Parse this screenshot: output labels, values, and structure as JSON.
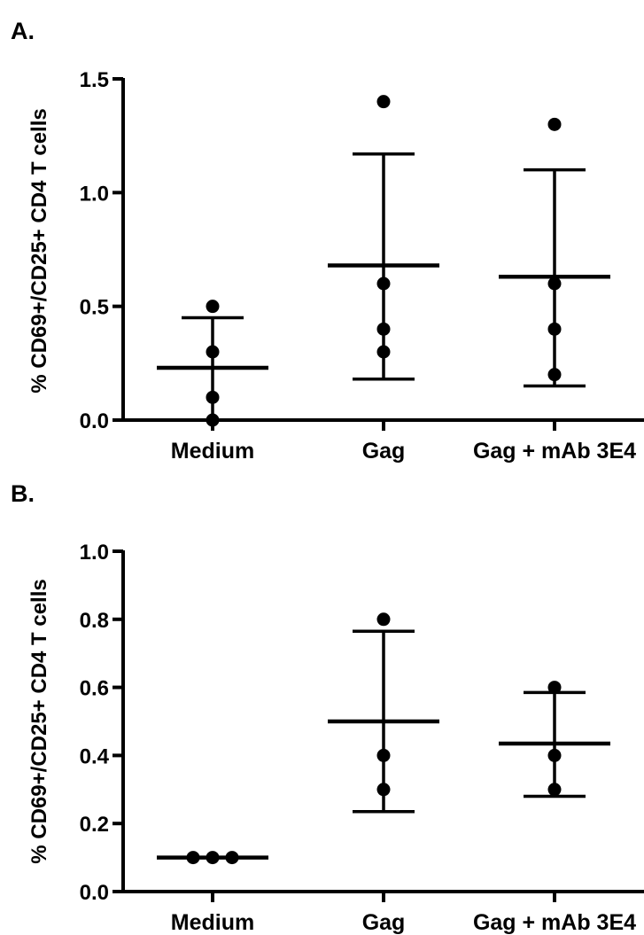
{
  "chart_data": [
    {
      "panel_label": "A.",
      "type": "scatter",
      "ylabel": "% CD69+/CD25+ CD4 T cells",
      "xlabel": "",
      "categories": [
        "Medium",
        "Gag",
        "Gag + mAb 3E4"
      ],
      "ylim": [
        0,
        1.5
      ],
      "yticks": [
        "0.0",
        "0.5",
        "1.0",
        "1.5"
      ],
      "yticks_values": [
        0,
        0.5,
        1.0,
        1.5
      ],
      "points": [
        [
          0.5,
          0.3,
          0.1,
          0.0
        ],
        [
          1.4,
          0.6,
          0.4,
          0.3
        ],
        [
          1.3,
          0.6,
          0.4,
          0.2
        ]
      ],
      "mean": [
        0.23,
        0.68,
        0.63
      ],
      "error_low": [
        0.0,
        0.18,
        0.15
      ],
      "error_high": [
        0.45,
        1.17,
        1.1
      ]
    },
    {
      "panel_label": "B.",
      "type": "scatter",
      "ylabel": "% CD69+/CD25+ CD4 T cells",
      "xlabel": "",
      "categories": [
        "Medium",
        "Gag",
        "Gag + mAb 3E4"
      ],
      "ylim": [
        0,
        1.0
      ],
      "yticks": [
        "0.0",
        "0.2",
        "0.4",
        "0.6",
        "0.8",
        "1.0"
      ],
      "yticks_values": [
        0,
        0.2,
        0.4,
        0.6,
        0.8,
        1.0
      ],
      "points": [
        [
          0.1,
          0.1,
          0.1
        ],
        [
          0.8,
          0.4,
          0.3
        ],
        [
          0.6,
          0.4,
          0.3
        ]
      ],
      "mean": [
        0.1,
        0.5,
        0.435
      ],
      "error_low": [
        0.1,
        0.235,
        0.28
      ],
      "error_high": [
        0.1,
        0.765,
        0.585
      ]
    }
  ]
}
